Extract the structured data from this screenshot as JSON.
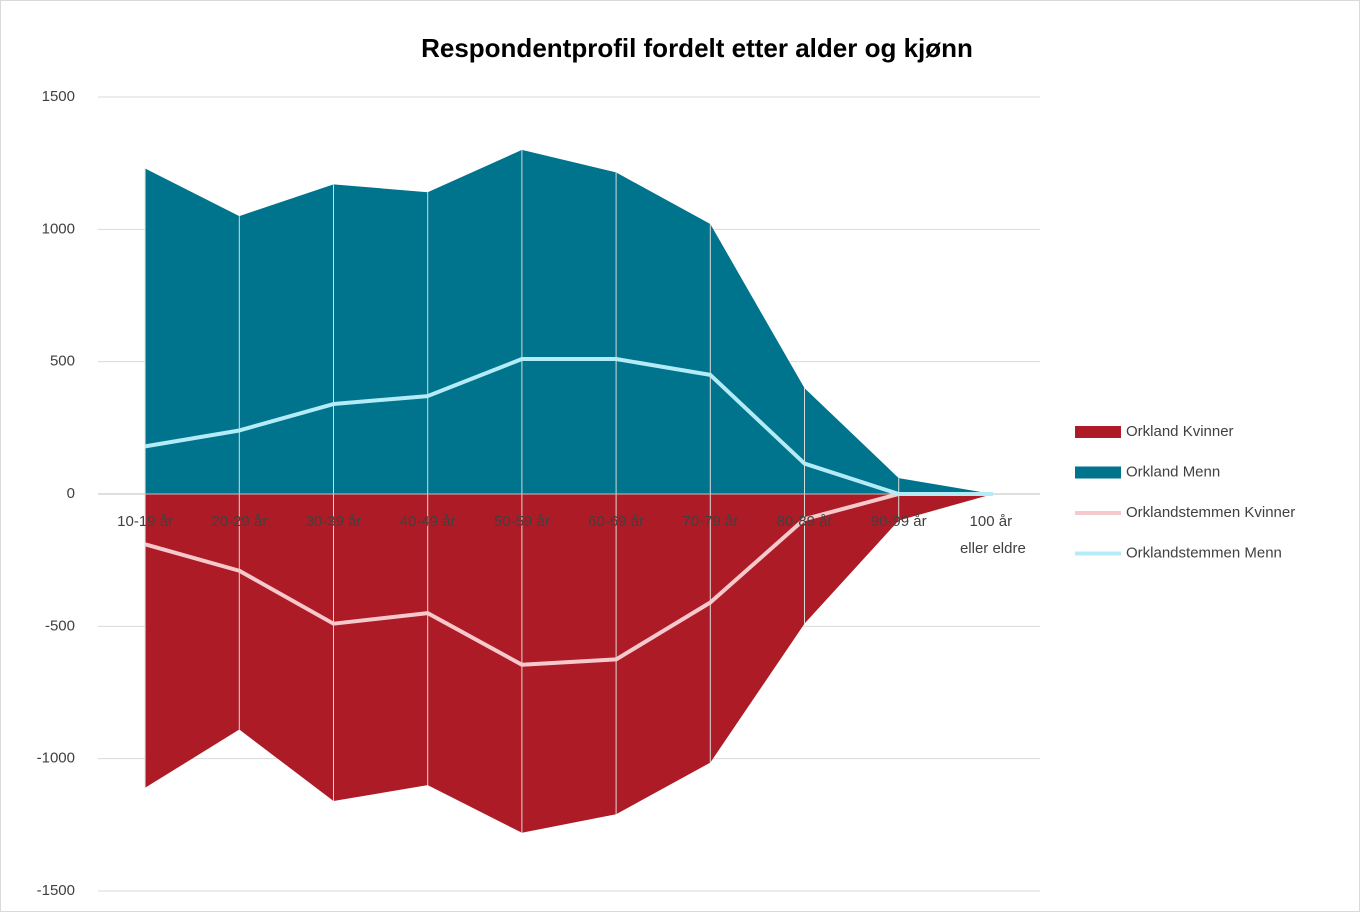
{
  "chart_data": {
    "type": "area",
    "title": "Respondentprofil fordelt etter alder og kjønn",
    "categories": [
      "10-19 år",
      "20-29 år",
      "30-39 år",
      "40-49 år",
      "50-59 år",
      "60-69 år",
      "70-79 år",
      "80-89 år",
      "90-99 år",
      "100 år eller eldre"
    ],
    "series": [
      {
        "name": "Orkland Kvinner",
        "type": "area",
        "color": "#ad1c26",
        "values": [
          -1110,
          -890,
          -1160,
          -1100,
          -1280,
          -1210,
          -1015,
          -490,
          -100,
          0
        ]
      },
      {
        "name": "Orkland Menn",
        "type": "area",
        "color": "#00738d",
        "values": [
          1230,
          1050,
          1170,
          1140,
          1300,
          1215,
          1020,
          400,
          60,
          0
        ]
      },
      {
        "name": "Orklandstemmen Kvinner",
        "type": "line",
        "color": "#f6c9cd",
        "values": [
          -190,
          -290,
          -490,
          -450,
          -645,
          -625,
          -410,
          -95,
          0,
          0
        ]
      },
      {
        "name": "Orklandstemmen Menn",
        "type": "line",
        "color": "#b3ecf7",
        "values": [
          180,
          240,
          340,
          370,
          510,
          510,
          450,
          115,
          0,
          0
        ]
      }
    ],
    "ylim": [
      -1500,
      1500
    ],
    "yticks": [
      -1500,
      -1000,
      -500,
      0,
      500,
      1000,
      1500
    ],
    "grid": true,
    "legend": "right"
  }
}
